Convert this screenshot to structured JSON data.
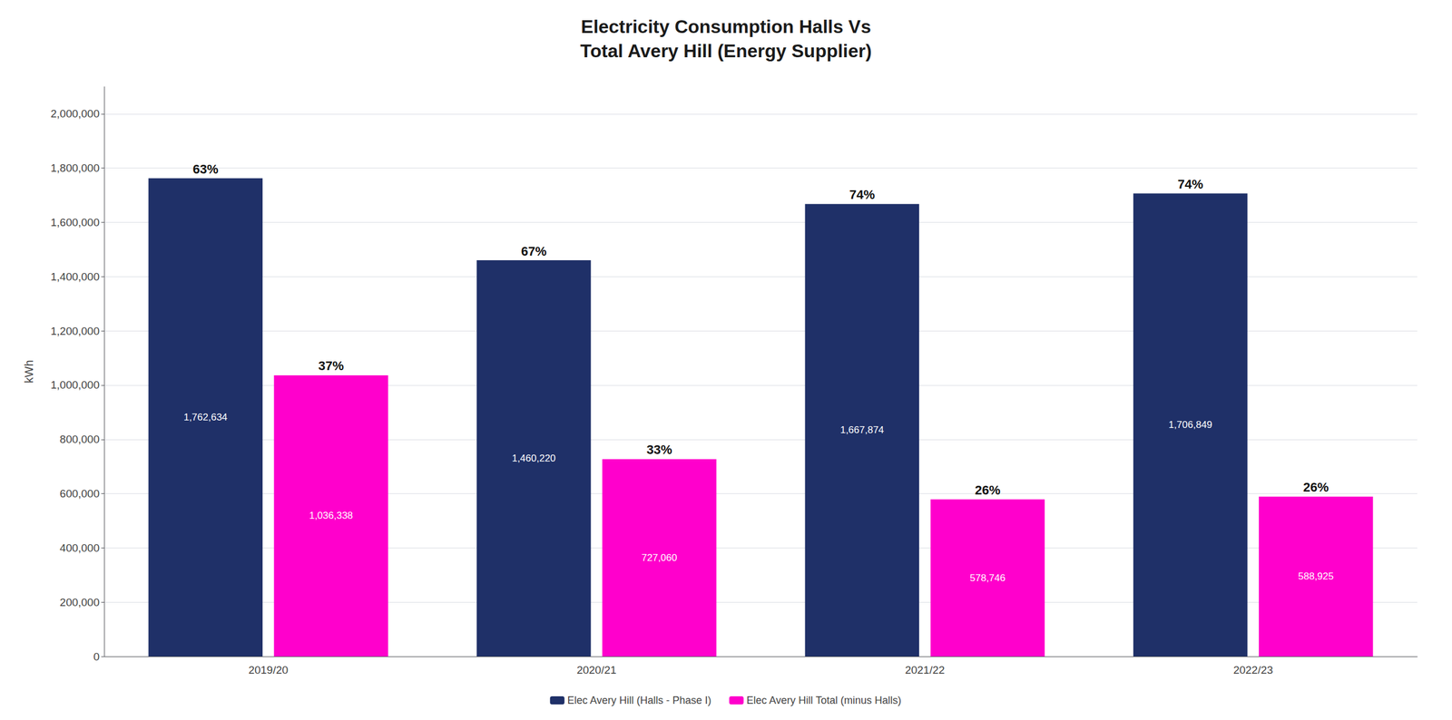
{
  "chart_data": {
    "type": "bar",
    "title": "Electricity Consumption Halls Vs\nTotal Avery Hill (Energy Supplier)",
    "ylabel": "kWh",
    "categories": [
      "2019/20",
      "2020/21",
      "2021/22",
      "2022/23"
    ],
    "series": [
      {
        "name": "Elec Avery Hill (Halls - Phase I)",
        "color": "#1f3068",
        "values": [
          1762634,
          1460220,
          1667874,
          1706849
        ],
        "value_labels": [
          "1,762,634",
          "1,460,220",
          "1,667,874",
          "1,706,849"
        ],
        "shares": [
          63,
          67,
          74,
          74
        ],
        "share_labels": [
          "63%",
          "67%",
          "74%",
          "74%"
        ]
      },
      {
        "name": "Elec Avery Hill Total (minus Halls)",
        "color": "#ff00cc",
        "values": [
          1036338,
          727060,
          578746,
          588925
        ],
        "value_labels": [
          "1,036,338",
          "727,060",
          "578,746",
          "588,925"
        ],
        "shares": [
          37,
          33,
          26,
          26
        ],
        "share_labels": [
          "37%",
          "33%",
          "26%",
          "26%"
        ]
      }
    ],
    "ylim": [
      0,
      2100000
    ],
    "yticks": [
      0,
      {
        "value": 200000,
        "label": "200,000"
      },
      {
        "value": 400000,
        "label": "400,000"
      },
      {
        "value": 600000,
        "label": "600,000"
      },
      {
        "value": 800000,
        "label": "800,000"
      },
      {
        "value": 1000000,
        "label": "1,000,000"
      },
      {
        "value": 1200000,
        "label": "1,200,000"
      },
      {
        "value": 1400000,
        "label": "1,400,000"
      },
      {
        "value": 1600000,
        "label": "1,600,000"
      },
      {
        "value": 1800000,
        "label": "1,800,000"
      },
      {
        "value": 2000000,
        "label": "2,000,000"
      }
    ],
    "grid": true,
    "legend": "bottom",
    "data_labels": true
  }
}
